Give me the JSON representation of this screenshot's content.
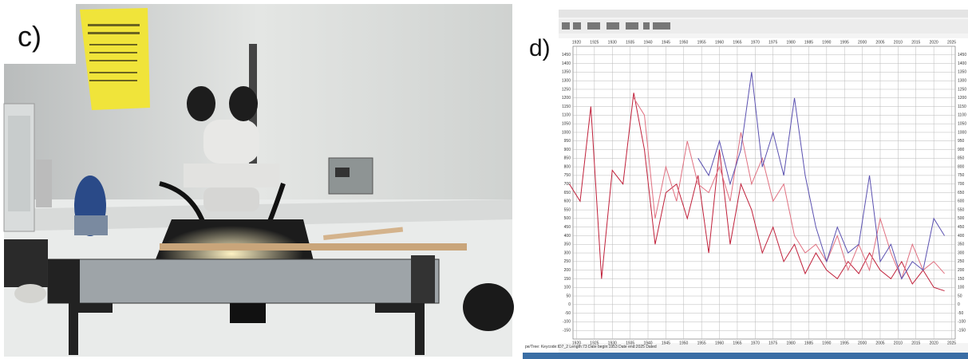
{
  "panels": {
    "left_label": "c)",
    "right_label": "d)"
  },
  "chart_data": {
    "type": "line",
    "status": "pe/Tree: Keycode:ID7_2 Length:73 Date begin:1953 Date end:2025 Dated",
    "x": [
      1918,
      1921,
      1924,
      1927,
      1930,
      1933,
      1936,
      1939,
      1942,
      1945,
      1948,
      1951,
      1954,
      1957,
      1960,
      1963,
      1966,
      1969,
      1972,
      1975,
      1978,
      1981,
      1984,
      1987,
      1990,
      1993,
      1996,
      1999,
      2002,
      2005,
      2008,
      2011,
      2014,
      2017,
      2020,
      2023
    ],
    "series": [
      {
        "color": "#c0203a",
        "values": [
          700,
          600,
          1150,
          150,
          780,
          700,
          1230,
          900,
          350,
          650,
          700,
          500,
          750,
          300,
          900,
          350,
          700,
          550,
          300,
          450,
          250,
          350,
          180,
          300,
          200,
          150,
          250,
          180,
          300,
          200,
          150,
          250,
          120,
          200,
          100,
          80
        ]
      },
      {
        "color": "#e07080",
        "values": [
          null,
          null,
          null,
          null,
          null,
          null,
          1200,
          1100,
          500,
          800,
          600,
          950,
          700,
          650,
          800,
          600,
          1000,
          700,
          850,
          600,
          700,
          400,
          300,
          350,
          250,
          400,
          200,
          350,
          200,
          500,
          300,
          150,
          350,
          200,
          250,
          180
        ]
      },
      {
        "color": "#5a50b0",
        "values": [
          null,
          null,
          null,
          null,
          null,
          null,
          null,
          null,
          null,
          null,
          null,
          null,
          850,
          750,
          950,
          700,
          900,
          1350,
          800,
          1000,
          750,
          1200,
          750,
          450,
          250,
          450,
          300,
          350,
          750,
          250,
          350,
          150,
          250,
          200,
          500,
          400
        ]
      }
    ],
    "xlim": [
      1919,
      2026
    ],
    "ylim": [
      -200,
      1500
    ],
    "xticks": [
      1920,
      1925,
      1930,
      1935,
      1940,
      1945,
      1950,
      1955,
      1960,
      1965,
      1970,
      1975,
      1980,
      1985,
      1990,
      1995,
      2000,
      2005,
      2010,
      2015,
      2020,
      2025
    ],
    "yticks": [
      -150,
      -100,
      -50,
      0,
      50,
      100,
      150,
      200,
      250,
      300,
      350,
      400,
      450,
      500,
      550,
      600,
      650,
      700,
      750,
      800,
      850,
      900,
      950,
      1000,
      1050,
      1100,
      1150,
      1200,
      1250,
      1300,
      1350,
      1400,
      1450
    ],
    "grid": true
  }
}
